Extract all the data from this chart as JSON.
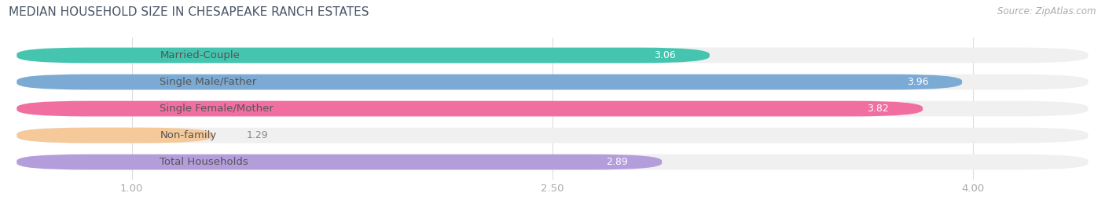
{
  "title": "MEDIAN HOUSEHOLD SIZE IN CHESAPEAKE RANCH ESTATES",
  "source": "Source: ZipAtlas.com",
  "categories": [
    "Married-Couple",
    "Single Male/Father",
    "Single Female/Mother",
    "Non-family",
    "Total Households"
  ],
  "values": [
    3.06,
    3.96,
    3.82,
    1.29,
    2.89
  ],
  "bar_colors": [
    "#45c4b0",
    "#7baad4",
    "#f06fa0",
    "#f5c99a",
    "#b39ddb"
  ],
  "bar_bg_colors": [
    "#f0f0f0",
    "#f0f0f0",
    "#f0f0f0",
    "#f0f0f0",
    "#f0f0f0"
  ],
  "label_color": "#555555",
  "value_color_inside": "#ffffff",
  "value_color_outside": "#888888",
  "xlim_data": [
    0.55,
    4.45
  ],
  "xmin": 1.0,
  "xmax": 4.0,
  "xticks": [
    1.0,
    2.5,
    4.0
  ],
  "title_fontsize": 11,
  "label_fontsize": 9.5,
  "value_fontsize": 9,
  "source_fontsize": 8.5,
  "bar_height": 0.58,
  "background_color": "#ffffff",
  "plot_bg_color": "#ffffff",
  "title_color": "#4a5568"
}
